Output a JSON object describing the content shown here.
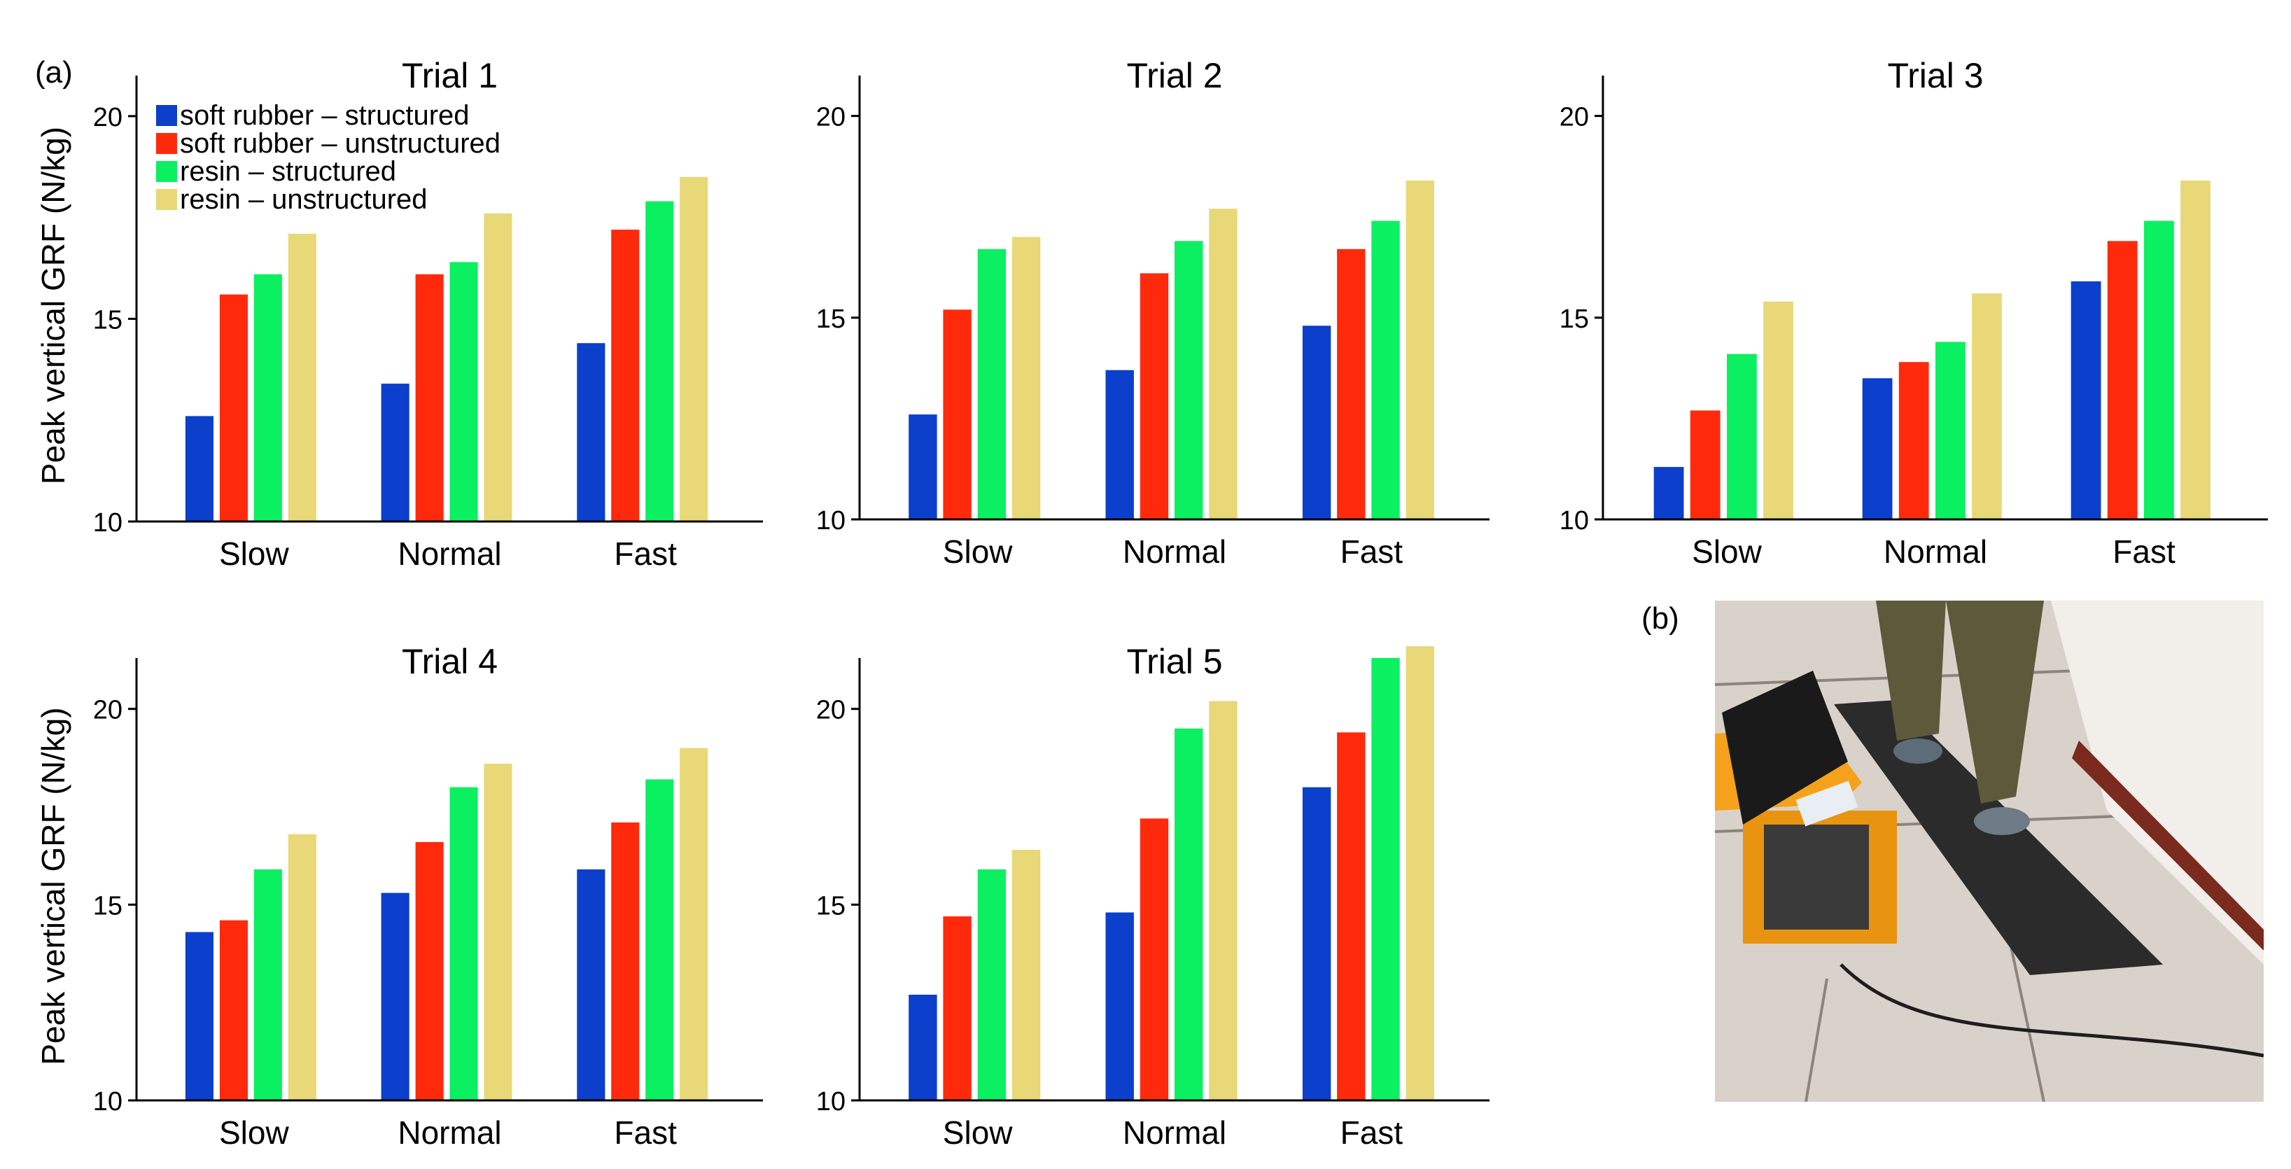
{
  "panel_labels": {
    "a": "(a)",
    "b": "(b)"
  },
  "legend": [
    {
      "label": "soft rubber – structured",
      "color": "#0B3FCC"
    },
    {
      "label": "soft rubber – unstructured",
      "color": "#FF2A0C"
    },
    {
      "label": "resin – structured",
      "color": "#0BF060"
    },
    {
      "label": "resin – unstructured",
      "color": "#E8D877"
    }
  ],
  "photo": {
    "description_icon": "treadmill-photo-icon",
    "colors": {
      "floor": "#D9D2CA",
      "mat": "#2B2B2B",
      "cart": "#F5A11A",
      "wall": "#F2EEEA",
      "pants": "#5C5A3A"
    }
  },
  "chart_data": [
    {
      "type": "bar",
      "title": "Trial 1",
      "categories": [
        "Slow",
        "Normal",
        "Fast"
      ],
      "ylabel": "Peak vertical GRF (N/kg)",
      "xlabel": "",
      "ylim": [
        10,
        21
      ],
      "yticks": [
        "10",
        "15",
        "20"
      ],
      "series": [
        {
          "name": "soft rubber – structured",
          "values": [
            12.6,
            13.4,
            14.4
          ]
        },
        {
          "name": "soft rubber – unstructured",
          "values": [
            15.6,
            16.1,
            17.2
          ]
        },
        {
          "name": "resin – structured",
          "values": [
            16.1,
            16.4,
            17.9
          ]
        },
        {
          "name": "resin – unstructured",
          "values": [
            17.1,
            17.6,
            18.5
          ]
        }
      ]
    },
    {
      "type": "bar",
      "title": "Trial 2",
      "categories": [
        "Slow",
        "Normal",
        "Fast"
      ],
      "ylabel": "",
      "xlabel": "",
      "ylim": [
        10,
        21
      ],
      "yticks": [
        "10",
        "15",
        "20"
      ],
      "series": [
        {
          "name": "soft rubber – structured",
          "values": [
            12.6,
            13.7,
            14.8
          ]
        },
        {
          "name": "soft rubber – unstructured",
          "values": [
            15.2,
            16.1,
            16.7
          ]
        },
        {
          "name": "resin – structured",
          "values": [
            16.7,
            16.9,
            17.4
          ]
        },
        {
          "name": "resin – unstructured",
          "values": [
            17.0,
            17.7,
            18.4
          ]
        }
      ]
    },
    {
      "type": "bar",
      "title": "Trial 3",
      "categories": [
        "Slow",
        "Normal",
        "Fast"
      ],
      "ylabel": "",
      "xlabel": "",
      "ylim": [
        10,
        21
      ],
      "yticks": [
        "10",
        "15",
        "20"
      ],
      "series": [
        {
          "name": "soft rubber – structured",
          "values": [
            11.3,
            13.5,
            15.9
          ]
        },
        {
          "name": "soft rubber – unstructured",
          "values": [
            12.7,
            13.9,
            16.9
          ]
        },
        {
          "name": "resin – structured",
          "values": [
            14.1,
            14.4,
            17.4
          ]
        },
        {
          "name": "resin – unstructured",
          "values": [
            15.4,
            15.6,
            18.4
          ]
        }
      ]
    },
    {
      "type": "bar",
      "title": "Trial 4",
      "categories": [
        "Slow",
        "Normal",
        "Fast"
      ],
      "ylabel": "Peak vertical GRF (N/kg)",
      "xlabel": "",
      "ylim": [
        10,
        21.3
      ],
      "yticks": [
        "10",
        "15",
        "20"
      ],
      "series": [
        {
          "name": "soft rubber – structured",
          "values": [
            14.3,
            15.3,
            15.9
          ]
        },
        {
          "name": "soft rubber – unstructured",
          "values": [
            14.6,
            16.6,
            17.1
          ]
        },
        {
          "name": "resin – structured",
          "values": [
            15.9,
            18.0,
            18.2
          ]
        },
        {
          "name": "resin – unstructured",
          "values": [
            16.8,
            18.6,
            19.0
          ]
        }
      ]
    },
    {
      "type": "bar",
      "title": "Trial 5",
      "categories": [
        "Slow",
        "Normal",
        "Fast"
      ],
      "ylabel": "",
      "xlabel": "",
      "ylim": [
        10,
        21.3
      ],
      "yticks": [
        "10",
        "15",
        "20"
      ],
      "series": [
        {
          "name": "soft rubber – structured",
          "values": [
            12.7,
            14.8,
            18.0
          ]
        },
        {
          "name": "soft rubber – unstructured",
          "values": [
            14.7,
            17.2,
            19.4
          ]
        },
        {
          "name": "resin – structured",
          "values": [
            15.9,
            19.5,
            21.3
          ]
        },
        {
          "name": "resin – unstructured",
          "values": [
            16.4,
            20.2,
            21.6
          ]
        }
      ]
    }
  ]
}
